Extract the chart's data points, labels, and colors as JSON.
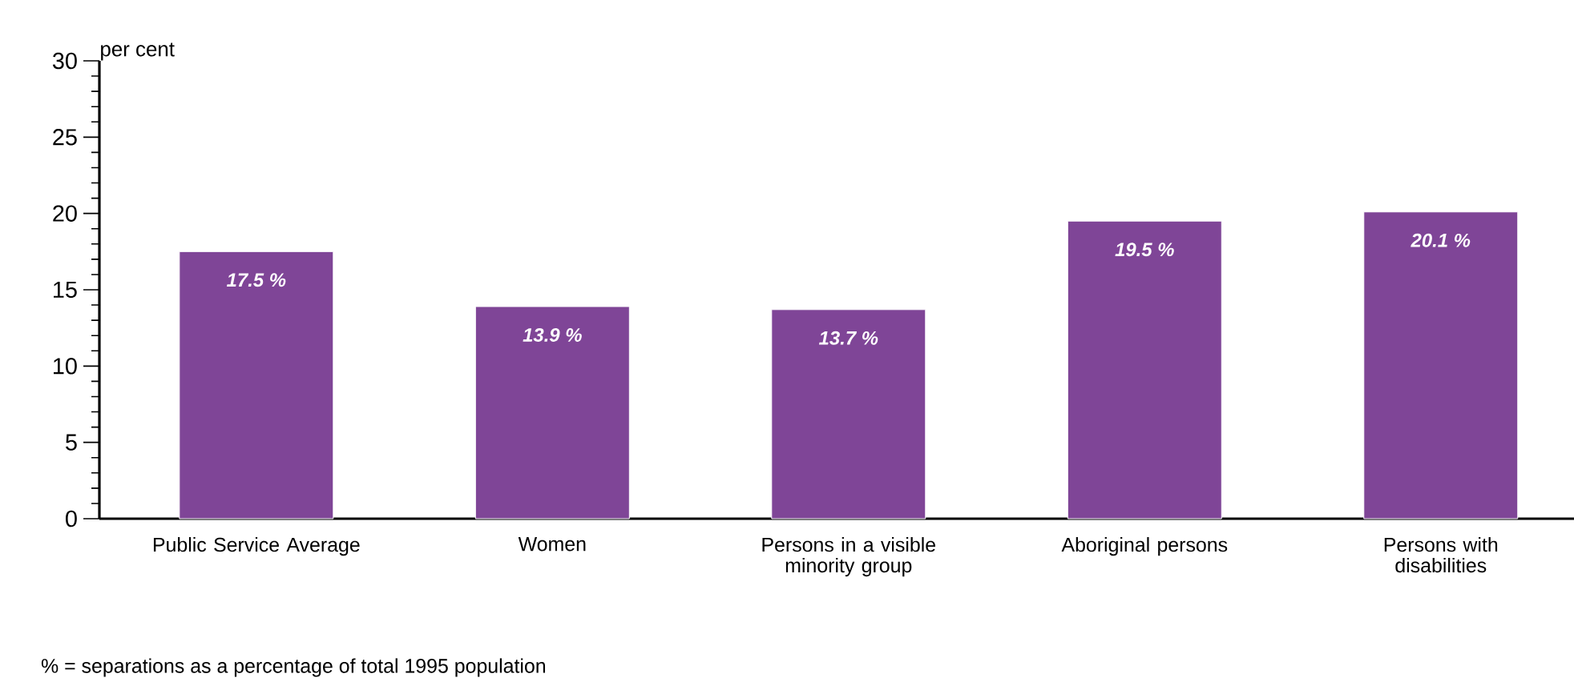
{
  "chart_data": {
    "type": "bar",
    "ylabel": "per cent",
    "categories": [
      "Public Service Average",
      "Women",
      "Persons in a visible minority group",
      "Aboriginal persons",
      "Persons with disabilities"
    ],
    "values": [
      17.5,
      13.9,
      13.7,
      19.5,
      20.1
    ],
    "value_labels": [
      "17.5 %",
      "13.9 %",
      "13.7 %",
      "19.5 %",
      "20.1 %"
    ],
    "color": "#7f4597",
    "ylim": [
      0,
      30
    ],
    "yticks": [
      0,
      5,
      10,
      15,
      20,
      25,
      30
    ],
    "annotations": [
      "% =  separations as a percentage of total 1995 population"
    ]
  }
}
